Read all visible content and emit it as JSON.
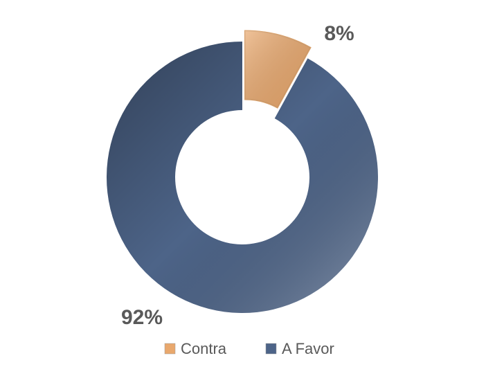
{
  "chart_data": {
    "type": "donut",
    "categories": [
      "Contra",
      "A Favor"
    ],
    "values": [
      8,
      92
    ],
    "value_labels": [
      "8%",
      "92%"
    ],
    "colors": [
      "#e9a86d",
      "#4d6488"
    ],
    "legend": "bottom"
  }
}
